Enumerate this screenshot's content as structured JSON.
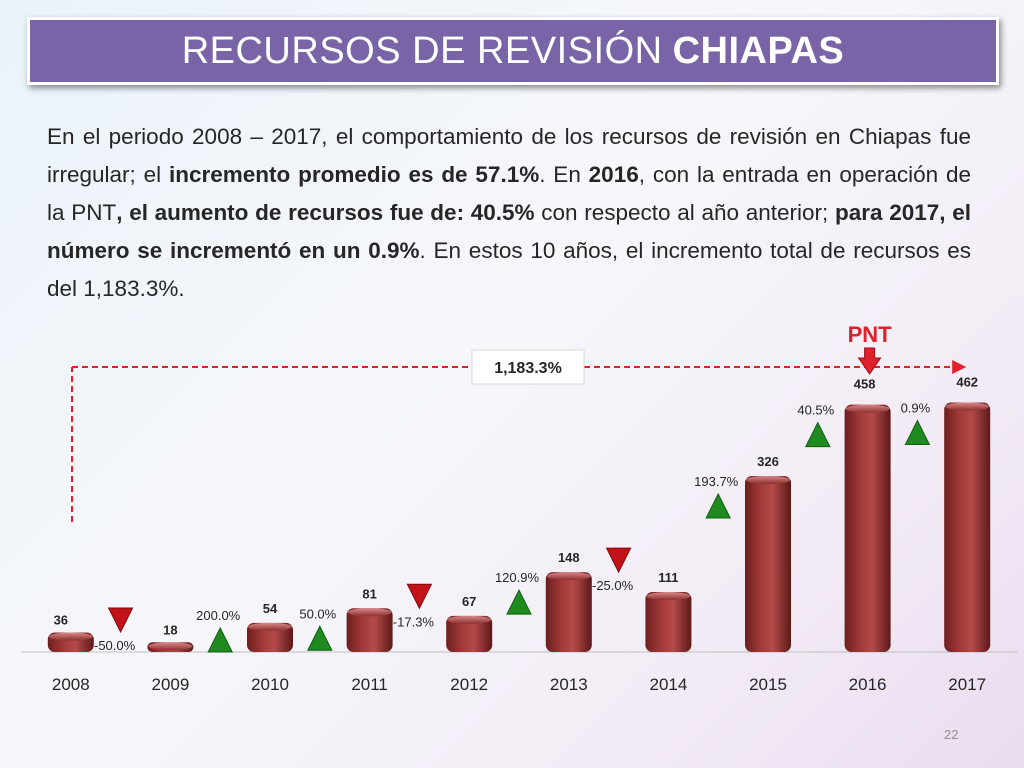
{
  "title": {
    "main": "RECURSOS DE REVISIÓN",
    "bold": "CHIAPAS"
  },
  "intro": {
    "p1": "En el periodo 2008 – 2017, el comportamiento de los recursos de revisión en Chiapas fue irregular; el ",
    "b1": "incremento promedio es de 57.1%",
    "p2": ". En ",
    "b2": "2016",
    "p3": ", con la entrada en operación de la PNT",
    "b3": ", el aumento de recursos fue de: 40.5%",
    "p4": " con respecto al año anterior; ",
    "b4": "para 2017, el número se incrementó en un 0.9%",
    "p5": ". En estos 10 años, el incremento total de recursos es del 1,183.3%."
  },
  "chart_data": {
    "type": "bar",
    "categories": [
      "2008",
      "2009",
      "2010",
      "2011",
      "2012",
      "2013",
      "2014",
      "2015",
      "2016",
      "2017"
    ],
    "values": [
      36,
      18,
      54,
      81,
      67,
      148,
      111,
      326,
      458,
      462
    ],
    "changes": [
      {
        "label": "-50.0%",
        "direction": "down"
      },
      {
        "label": "200.0%",
        "direction": "up"
      },
      {
        "label": "50.0%",
        "direction": "up"
      },
      {
        "label": "-17.3%",
        "direction": "down"
      },
      {
        "label": "120.9%",
        "direction": "up"
      },
      {
        "label": "-25.0%",
        "direction": "down"
      },
      {
        "label": "193.7%",
        "direction": "up"
      },
      {
        "label": "40.5%",
        "direction": "up"
      },
      {
        "label": "0.9%",
        "direction": "up"
      }
    ],
    "total_change_label": "1,183.3%",
    "marker": {
      "label": "PNT",
      "category": "2016"
    },
    "colors": {
      "bar": "#a33a3a",
      "up": "#1f8a1f",
      "down": "#c4121a",
      "marker": "#e0202a",
      "dashed": "#e0202a"
    }
  },
  "slide_number": "22"
}
